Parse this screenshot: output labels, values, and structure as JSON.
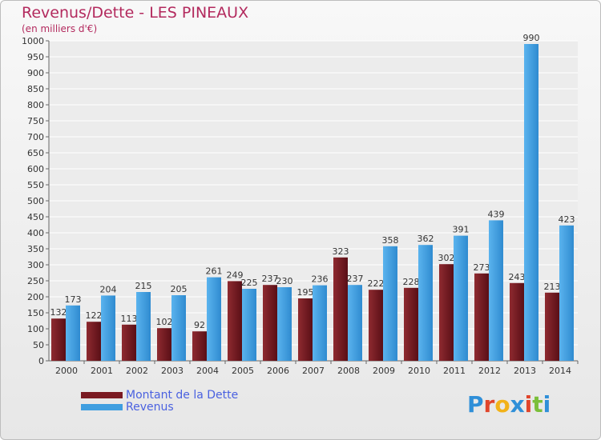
{
  "title": "Revenus/Dette - LES PINEAUX",
  "subtitle": "(en milliers d'€)",
  "chart_data": {
    "type": "bar",
    "categories": [
      "2000",
      "2001",
      "2002",
      "2003",
      "2004",
      "2005",
      "2006",
      "2007",
      "2008",
      "2009",
      "2010",
      "2011",
      "2012",
      "2013",
      "2014"
    ],
    "series": [
      {
        "name": "Montant de la Dette",
        "color": "#7a1a22",
        "values": [
          132,
          122,
          113,
          102,
          92,
          249,
          237,
          195,
          323,
          222,
          228,
          302,
          273,
          243,
          213
        ]
      },
      {
        "name": "Revenus",
        "color": "#3f9ee0",
        "values": [
          173,
          204,
          215,
          205,
          261,
          225,
          230,
          236,
          237,
          358,
          362,
          391,
          439,
          990,
          423
        ]
      }
    ],
    "ylim": [
      0,
      1000
    ],
    "yticks": [
      0,
      50,
      100,
      150,
      200,
      250,
      300,
      350,
      400,
      450,
      500,
      550,
      600,
      650,
      700,
      750,
      800,
      850,
      900,
      950,
      1000
    ],
    "grid": true,
    "legend_position": "bottom-left"
  },
  "legend": {
    "debt_label": "Montant de la Dette",
    "revenue_label": "Revenus"
  },
  "logo": [
    "P",
    "r",
    "o",
    "x",
    "i",
    "t",
    "i"
  ]
}
